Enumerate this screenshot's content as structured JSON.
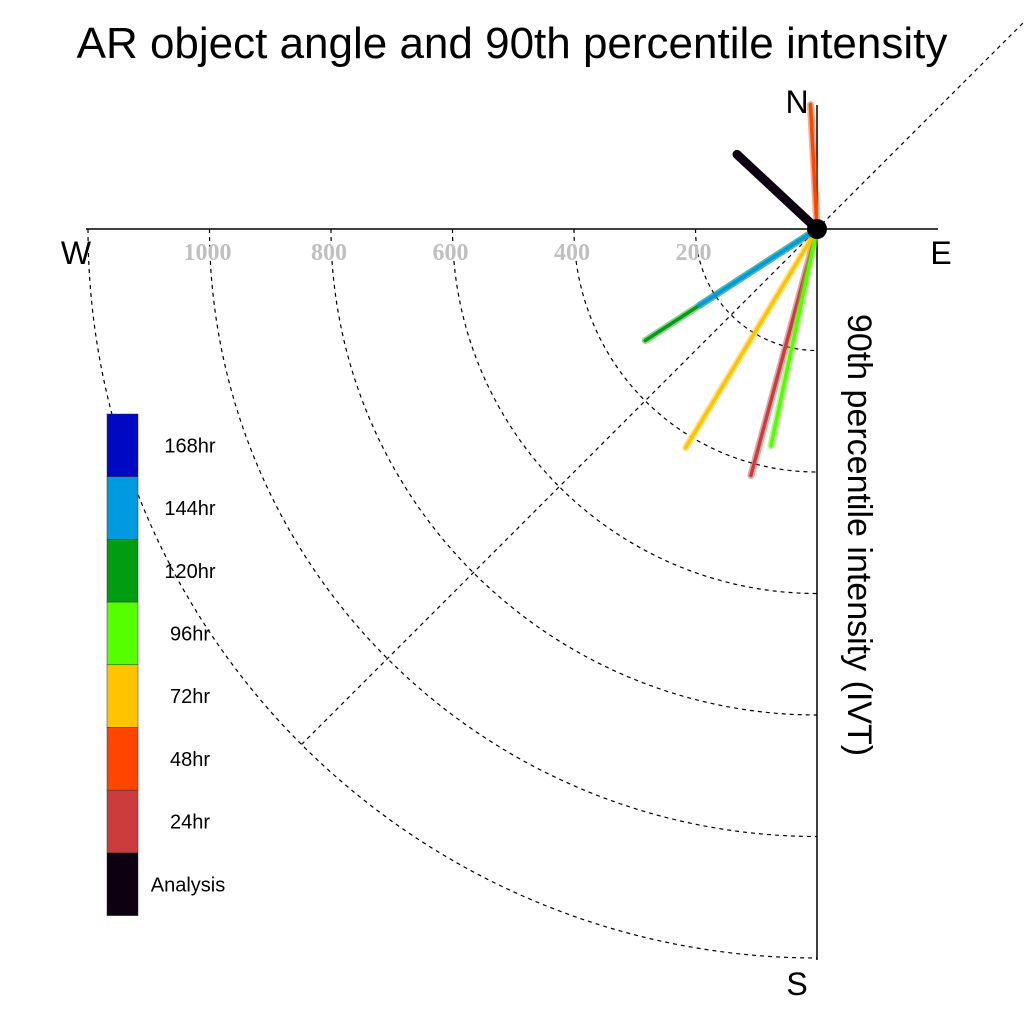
{
  "chart_data": {
    "type": "polar-line",
    "title": "AR object angle and 90th percentile intensity",
    "ylabel": "90th percentile intensity (IVT)",
    "compass": {
      "north": "N",
      "south": "S",
      "east": "E",
      "west": "W"
    },
    "radial_ticks": [
      {
        "value": 200,
        "label": "200"
      },
      {
        "value": 400,
        "label": "400"
      },
      {
        "value": 600,
        "label": "600"
      },
      {
        "value": 800,
        "label": "800"
      },
      {
        "value": 1000,
        "label": "1000"
      }
    ],
    "rlim": [
      0,
      1200
    ],
    "grid": true,
    "legend_position": "left",
    "series": [
      {
        "name": "Analysis",
        "color": "#0d0010",
        "bearing_deg": 313,
        "intensity": 180
      },
      {
        "name": "48hr",
        "color": "#ff4500",
        "bearing_deg": 357,
        "intensity": 205
      },
      {
        "name": "24hr",
        "color": "#cc3c3c",
        "bearing_deg": 195,
        "intensity": 420
      },
      {
        "name": "96hr",
        "color": "#55ff00",
        "bearing_deg": 192,
        "intensity": 365
      },
      {
        "name": "72hr",
        "color": "#ffc300",
        "bearing_deg": 211,
        "intensity": 420
      },
      {
        "name": "120hr",
        "color": "#009c12",
        "bearing_deg": 237,
        "intensity": 337
      },
      {
        "name": "144hr",
        "color": "#009ae0",
        "bearing_deg": 237,
        "intensity": 230
      }
    ],
    "legend": [
      {
        "label": "168hr",
        "color": "#0008c3"
      },
      {
        "label": "144hr",
        "color": "#009ae0"
      },
      {
        "label": "120hr",
        "color": "#009c12"
      },
      {
        "label": "96hr",
        "color": "#55ff00"
      },
      {
        "label": "72hr",
        "color": "#ffc300"
      },
      {
        "label": "48hr",
        "color": "#ff4500"
      },
      {
        "label": "24hr",
        "color": "#cc3c3c"
      },
      {
        "label": "Analysis",
        "color": "#0d0010"
      }
    ]
  }
}
